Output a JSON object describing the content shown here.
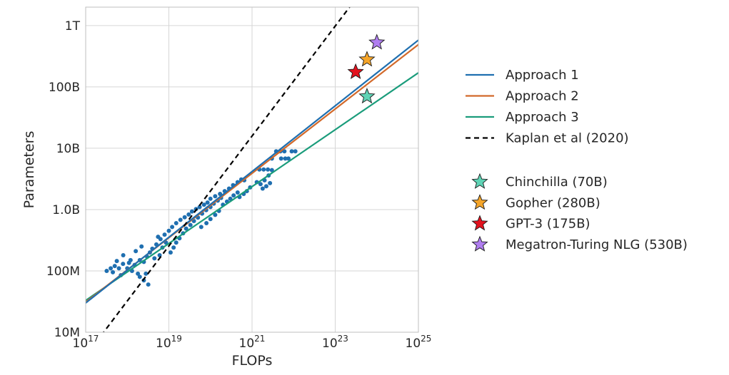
{
  "chart_data": {
    "type": "scatter",
    "xlabel": "FLOPs",
    "ylabel": "Parameters",
    "xscale": "log",
    "yscale": "log",
    "xlim": [
      1e+17,
      1e+25
    ],
    "ylim": [
      10000000.0,
      2000000000000.0
    ],
    "grid": true,
    "legend_position": "right",
    "x_ticks": [
      {
        "value": 1e+17,
        "base": "10",
        "exp": "17"
      },
      {
        "value": 1e+19,
        "base": "10",
        "exp": "19"
      },
      {
        "value": 1e+21,
        "base": "10",
        "exp": "21"
      },
      {
        "value": 1e+23,
        "base": "10",
        "exp": "23"
      },
      {
        "value": 1e+25,
        "base": "10",
        "exp": "25"
      }
    ],
    "y_ticks": [
      {
        "value": 10000000.0,
        "label": "10M"
      },
      {
        "value": 100000000.0,
        "label": "100M"
      },
      {
        "value": 1000000000.0,
        "label": "1.0B"
      },
      {
        "value": 10000000000.0,
        "label": "10B"
      },
      {
        "value": 100000000000.0,
        "label": "100B"
      },
      {
        "value": 1000000000000.0,
        "label": "1T"
      }
    ],
    "colors": {
      "approach_1": "#1f6fb0",
      "approach_2": "#d2692a",
      "approach_3": "#1a9c7b",
      "kaplan": "#000000",
      "scatter": "#1f6fb0"
    },
    "series": [
      {
        "name": "Approach 1",
        "kind": "line",
        "color": "#1f6fb0",
        "style": "solid",
        "x": [
          1e+17,
          1e+25
        ],
        "y": [
          30000000.0,
          580000000000.0
        ]
      },
      {
        "name": "Approach 2",
        "kind": "line",
        "color": "#d2692a",
        "style": "solid",
        "x": [
          1e+17,
          1e+25
        ],
        "y": [
          31000000.0,
          490000000000.0
        ]
      },
      {
        "name": "Approach 3",
        "kind": "line",
        "color": "#1a9c7b",
        "style": "solid",
        "x": [
          1e+17,
          1e+25
        ],
        "y": [
          33000000.0,
          170000000000.0
        ]
      },
      {
        "name": "Kaplan et al (2020)",
        "kind": "line",
        "color": "#000000",
        "style": "dashed",
        "x": [
          1e+17,
          1e+25
        ],
        "y": [
          4100000.0,
          61000000000000.0
        ]
      }
    ],
    "scatter_points": [
      [
        3.2e+17,
        100000000.0
      ],
      [
        4e+17,
        110000000.0
      ],
      [
        5e+17,
        120000000.0
      ],
      [
        6.3e+17,
        110000000.0
      ],
      [
        7.9e+17,
        130000000.0
      ],
      [
        4.5e+17,
        95000000.0
      ],
      [
        7e+17,
        85000000.0
      ],
      [
        1e+18,
        110000000.0
      ],
      [
        1.3e+18,
        100000000.0
      ],
      [
        1.1e+18,
        135000000.0
      ],
      [
        5.6e+17,
        145000000.0
      ],
      [
        8e+17,
        180000000.0
      ],
      [
        1.2e+18,
        150000000.0
      ],
      [
        1.6e+18,
        210000000.0
      ],
      [
        2.2e+18,
        250000000.0
      ],
      [
        1.5e+18,
        125000000.0
      ],
      [
        2e+18,
        150000000.0
      ],
      [
        2.5e+18,
        140000000.0
      ],
      [
        3e+18,
        170000000.0
      ],
      [
        3.5e+18,
        200000000.0
      ],
      [
        2e+18,
        80000000.0
      ],
      [
        2.5e+18,
        70000000.0
      ],
      [
        3.2e+18,
        60000000.0
      ],
      [
        1.8e+18,
        90000000.0
      ],
      [
        2.8e+18,
        90000000.0
      ],
      [
        4e+18,
        230000000.0
      ],
      [
        5e+18,
        270000000.0
      ],
      [
        6.3e+18,
        330000000.0
      ],
      [
        7.9e+18,
        390000000.0
      ],
      [
        1e+19,
        450000000.0
      ],
      [
        4.5e+18,
        160000000.0
      ],
      [
        6e+18,
        180000000.0
      ],
      [
        5.5e+18,
        360000000.0
      ],
      [
        7e+18,
        240000000.0
      ],
      [
        8.5e+18,
        290000000.0
      ],
      [
        1.1e+19,
        200000000.0
      ],
      [
        1.3e+19,
        240000000.0
      ],
      [
        1.5e+19,
        290000000.0
      ],
      [
        1.8e+19,
        340000000.0
      ],
      [
        2.2e+19,
        410000000.0
      ],
      [
        1.2e+19,
        520000000.0
      ],
      [
        1.5e+19,
        600000000.0
      ],
      [
        1.9e+19,
        680000000.0
      ],
      [
        2.4e+19,
        750000000.0
      ],
      [
        3e+19,
        830000000.0
      ],
      [
        2.6e+19,
        490000000.0
      ],
      [
        3.3e+19,
        560000000.0
      ],
      [
        4e+19,
        650000000.0
      ],
      [
        5e+19,
        740000000.0
      ],
      [
        6.3e+19,
        860000000.0
      ],
      [
        3.6e+19,
        930000000.0
      ],
      [
        4.5e+19,
        1020000000.0
      ],
      [
        5.5e+19,
        1100000000.0
      ],
      [
        7e+19,
        1200000000.0
      ],
      [
        8.5e+19,
        1300000000.0
      ],
      [
        7.9e+19,
        980000000.0
      ],
      [
        1e+20,
        1100000000.0
      ],
      [
        1.2e+20,
        1250000000.0
      ],
      [
        1.5e+20,
        1400000000.0
      ],
      [
        1.8e+20,
        1550000000.0
      ],
      [
        6e+19,
        520000000.0
      ],
      [
        8e+19,
        600000000.0
      ],
      [
        1e+20,
        700000000.0
      ],
      [
        1.3e+20,
        820000000.0
      ],
      [
        1.6e+20,
        950000000.0
      ],
      [
        1e+20,
        1500000000.0
      ],
      [
        1.3e+20,
        1650000000.0
      ],
      [
        1.7e+20,
        1800000000.0
      ],
      [
        2.2e+20,
        2000000000.0
      ],
      [
        2.8e+20,
        2200000000.0
      ],
      [
        2e+20,
        1200000000.0
      ],
      [
        2.5e+20,
        1350000000.0
      ],
      [
        3e+20,
        1500000000.0
      ],
      [
        3.6e+20,
        1700000000.0
      ],
      [
        4.5e+20,
        1900000000.0
      ],
      [
        3.5e+20,
        2500000000.0
      ],
      [
        4.5e+20,
        2800000000.0
      ],
      [
        5.5e+20,
        3100000000.0
      ],
      [
        6.5e+20,
        3000000000.0
      ],
      [
        5e+20,
        1600000000.0
      ],
      [
        6.3e+20,
        1800000000.0
      ],
      [
        7.5e+20,
        2000000000.0
      ],
      [
        9e+20,
        2300000000.0
      ],
      [
        1.3e+21,
        2800000000.0
      ],
      [
        1.6e+21,
        2600000000.0
      ],
      [
        2e+21,
        3000000000.0
      ],
      [
        2.5e+21,
        3600000000.0
      ],
      [
        3e+21,
        4400000000.0
      ],
      [
        1.8e+21,
        2200000000.0
      ],
      [
        2.2e+21,
        2400000000.0
      ],
      [
        2.7e+21,
        2700000000.0
      ],
      [
        1.5e+21,
        4500000000.0
      ],
      [
        1.9e+21,
        4500000000.0
      ],
      [
        2.4e+21,
        4500000000.0
      ],
      [
        3e+21,
        6800000000.0
      ],
      [
        3.8e+21,
        8900000000.0
      ],
      [
        4.8e+21,
        8900000000.0
      ],
      [
        6e+21,
        8900000000.0
      ],
      [
        5e+21,
        6800000000.0
      ],
      [
        6.3e+21,
        6800000000.0
      ],
      [
        7.5e+21,
        6800000000.0
      ],
      [
        9e+21,
        8900000000.0
      ],
      [
        1.1e+22,
        8900000000.0
      ]
    ],
    "star_points": [
      {
        "name": "Chinchilla (70B)",
        "x": 5.8e+23,
        "y": 70000000000.0,
        "color": "#5fd3b5"
      },
      {
        "name": "Gopher (280B)",
        "x": 5.8e+23,
        "y": 280000000000.0,
        "color": "#f5a52a"
      },
      {
        "name": "GPT-3 (175B)",
        "x": 3.1e+23,
        "y": 175000000000.0,
        "color": "#e3121e"
      },
      {
        "name": "Megatron-Turing NLG (530B)",
        "x": 1e+24,
        "y": 530000000000.0,
        "color": "#b07ef0"
      }
    ],
    "legend_lines": [
      {
        "label": "Approach 1",
        "color": "#1f6fb0",
        "style": "solid"
      },
      {
        "label": "Approach 2",
        "color": "#d2692a",
        "style": "solid"
      },
      {
        "label": "Approach 3",
        "color": "#1a9c7b",
        "style": "solid"
      },
      {
        "label": "Kaplan et al (2020)",
        "color": "#000000",
        "style": "dashed"
      }
    ],
    "legend_stars": [
      {
        "label": "Chinchilla (70B)",
        "color": "#5fd3b5"
      },
      {
        "label": "Gopher (280B)",
        "color": "#f5a52a"
      },
      {
        "label": "GPT-3 (175B)",
        "color": "#e3121e"
      },
      {
        "label": "Megatron-Turing NLG (530B)",
        "color": "#b07ef0"
      }
    ]
  }
}
